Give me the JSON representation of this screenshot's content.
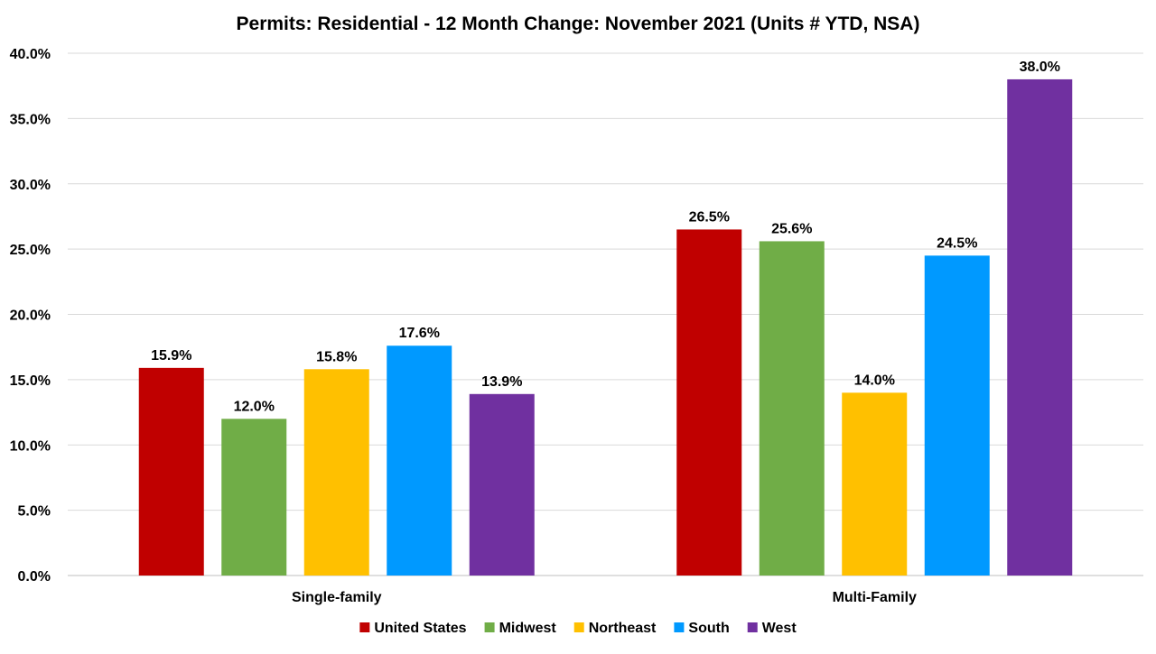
{
  "chart_data": {
    "type": "bar",
    "title": "Permits: Residential - 12 Month Change: November 2021 (Units # YTD, NSA)",
    "categories": [
      "Single-family",
      "Multi-Family"
    ],
    "series": [
      {
        "name": "United States",
        "color": "#c00000",
        "values": [
          15.9,
          26.5
        ],
        "labels": [
          "15.9%",
          "26.5%"
        ]
      },
      {
        "name": "Midwest",
        "color": "#70ad47",
        "values": [
          12.0,
          25.6
        ],
        "labels": [
          "12.0%",
          "25.6%"
        ]
      },
      {
        "name": "Northeast",
        "color": "#ffc000",
        "values": [
          15.8,
          14.0
        ],
        "labels": [
          "15.8%",
          "14.0%"
        ]
      },
      {
        "name": "South",
        "color": "#0099ff",
        "values": [
          17.6,
          24.5
        ],
        "labels": [
          "17.6%",
          "24.5%"
        ]
      },
      {
        "name": "West",
        "color": "#7030a0",
        "values": [
          13.9,
          38.0
        ],
        "labels": [
          "13.9%",
          "38.0%"
        ]
      }
    ],
    "ylim": [
      0,
      40
    ],
    "yticks": [
      {
        "value": 0,
        "label": "0.0%"
      },
      {
        "value": 5,
        "label": "5.0%"
      },
      {
        "value": 10,
        "label": "10.0%"
      },
      {
        "value": 15,
        "label": "15.0%"
      },
      {
        "value": 20,
        "label": "20.0%"
      },
      {
        "value": 25,
        "label": "25.0%"
      },
      {
        "value": 30,
        "label": "30.0%"
      },
      {
        "value": 35,
        "label": "35.0%"
      },
      {
        "value": 40,
        "label": "40.0%"
      }
    ],
    "grid": true,
    "legend_position": "bottom"
  }
}
